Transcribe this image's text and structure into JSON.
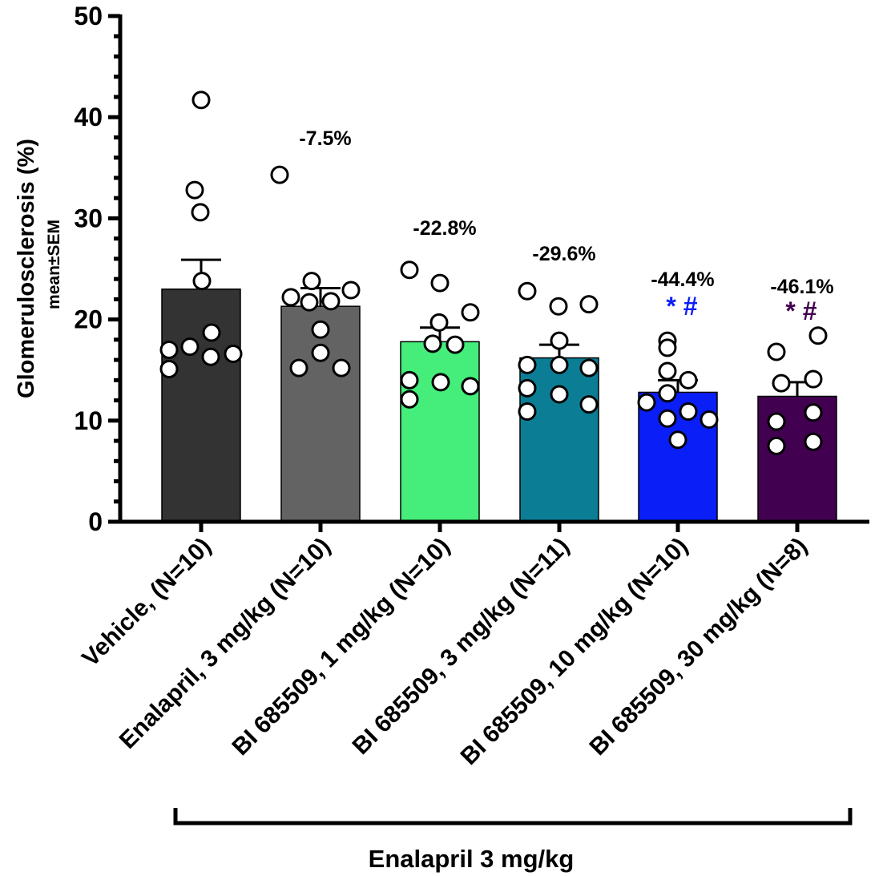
{
  "chart_data": {
    "type": "bar",
    "title": "",
    "ylabel": "Glomerulosclerosis (%)",
    "ylabel_sub": "mean±SEM",
    "ylim": [
      0,
      50
    ],
    "yticks": [
      "0",
      "10",
      "20",
      "30",
      "40",
      "50"
    ],
    "grid": false,
    "categories": [
      "Vehicle, (N=10)",
      "Enalapril, 3 mg/kg (N=10)",
      "BI 685509, 1 mg/kg (N=10)",
      "BI 685509, 3 mg/kg (N=11)",
      "BI 685509, 10 mg/kg (N=10)",
      "BI 685509, 30 mg/kg (N=8)"
    ],
    "values": [
      23.0,
      21.3,
      17.8,
      16.2,
      12.8,
      12.4
    ],
    "sem": [
      2.9,
      1.8,
      1.4,
      1.3,
      1.2,
      1.4
    ],
    "colors": [
      "#333333",
      "#636363",
      "#45ED7A",
      "#0B7E96",
      "#0A1EF8",
      "#420050"
    ],
    "annotations": [
      "",
      "-7.5%",
      "-22.8%",
      "-29.6%",
      "-44.4%",
      "-46.1%"
    ],
    "significance": [
      "",
      "",
      "",
      "",
      "* #",
      "* #"
    ],
    "points": [
      [
        41.7,
        32.8,
        30.6,
        23.8,
        18.7,
        17.3,
        17.0,
        16.6,
        16.3,
        15.1
      ],
      [
        34.3,
        23.8,
        22.9,
        22.2,
        21.8,
        21.7,
        19.0,
        16.7,
        15.2,
        15.2
      ],
      [
        24.9,
        23.6,
        20.7,
        19.7,
        17.6,
        17.5,
        14.0,
        13.8,
        13.4,
        12.1
      ],
      [
        22.8,
        21.5,
        21.3,
        17.9,
        15.5,
        15.5,
        15.2,
        13.2,
        12.6,
        11.6,
        10.9
      ],
      [
        17.9,
        17.2,
        14.9,
        14.0,
        12.7,
        11.8,
        10.9,
        10.2,
        10.1,
        8.1
      ],
      [
        18.4,
        16.8,
        14.1,
        13.7,
        10.8,
        9.9,
        7.9,
        7.5
      ]
    ],
    "bracket_label": "Enalapril 3 mg/kg",
    "bracket_span": [
      "Enalapril, 3 mg/kg (N=10)",
      "BI 685509, 30 mg/kg (N=8)"
    ]
  }
}
